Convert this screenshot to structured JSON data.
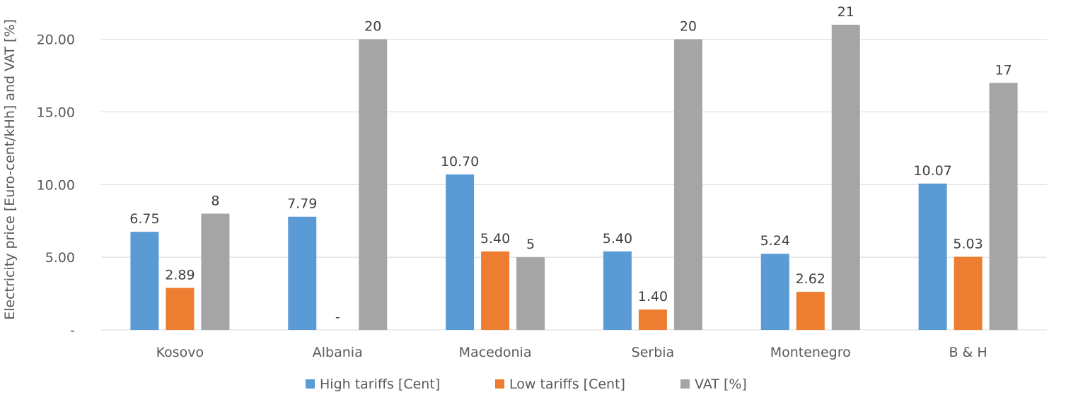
{
  "chart_data": {
    "type": "bar",
    "title": "",
    "xlabel": "",
    "ylabel": "Electricity price [Euro-cent/kHh] and VAT [%]",
    "ylim": [
      0,
      21
    ],
    "yticks": [
      0,
      5,
      10,
      15,
      20
    ],
    "ytick_labels": [
      "-",
      "5.00",
      "10.00",
      "15.00",
      "20.00"
    ],
    "grid": true,
    "legend_position": "bottom",
    "categories": [
      "Kosovo",
      "Albania",
      "Macedonia",
      "Serbia",
      "Montenegro",
      "B & H"
    ],
    "series": [
      {
        "name": "High tariffs [Cent]",
        "color": "#5b9bd5",
        "values": [
          6.75,
          7.79,
          10.7,
          5.4,
          5.24,
          10.07
        ],
        "labels": [
          "6.75",
          "7.79",
          "10.70",
          "5.40",
          "5.24",
          "10.07"
        ]
      },
      {
        "name": "Low tariffs [Cent]",
        "color": "#ed7d31",
        "values": [
          2.89,
          0,
          5.4,
          1.4,
          2.62,
          5.03
        ],
        "labels": [
          "2.89",
          "-",
          "5.40",
          "1.40",
          "2.62",
          "5.03"
        ]
      },
      {
        "name": "VAT [%]",
        "color": "#a5a5a5",
        "values": [
          8,
          20,
          5,
          20,
          21,
          17
        ],
        "labels": [
          "8",
          "20",
          "5",
          "20",
          "21",
          "17"
        ]
      }
    ]
  }
}
